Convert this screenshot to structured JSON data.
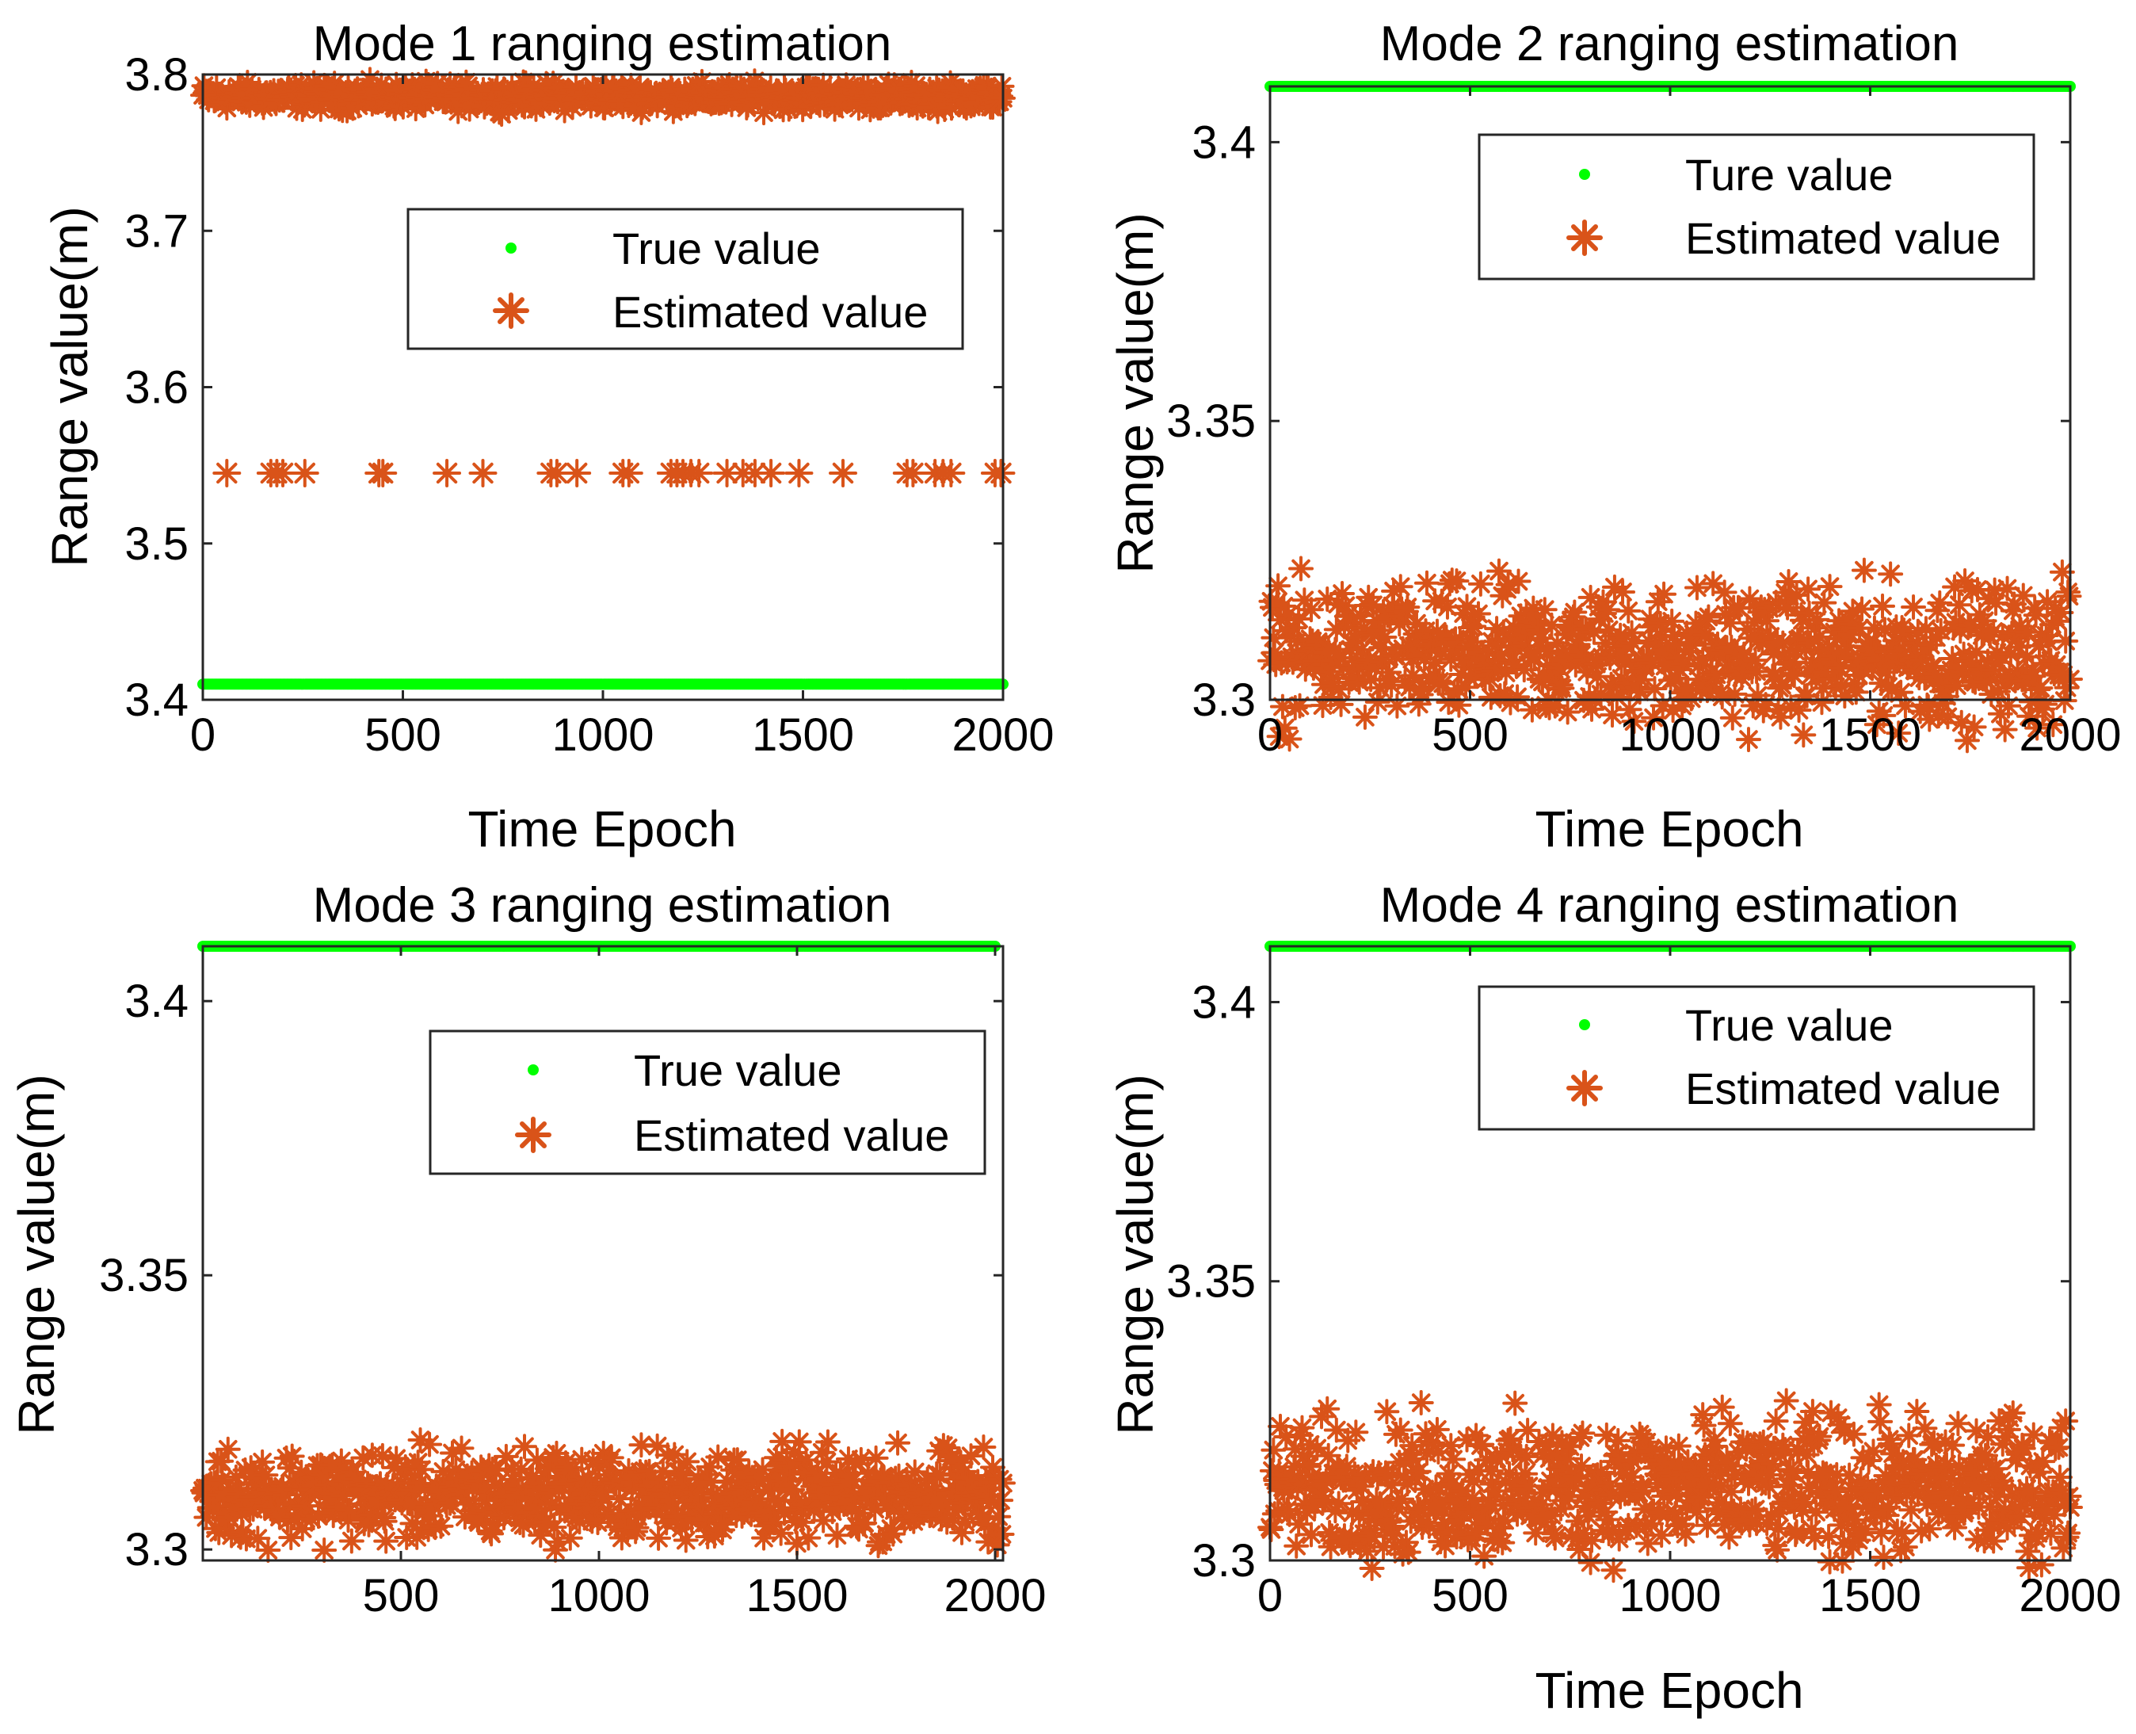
{
  "chart_data": [
    {
      "type": "scatter",
      "title": "Mode 1 ranging estimation",
      "xlabel": "Time Epoch",
      "ylabel": "Range value(m)",
      "xlim": [
        0,
        2000
      ],
      "ylim": [
        3.4,
        3.8
      ],
      "xticks": [
        0,
        500,
        1000,
        1500,
        2000
      ],
      "yticks": [
        3.4,
        3.5,
        3.6,
        3.7,
        3.8
      ],
      "ytick_labels": [
        "3.4",
        "3.5",
        "3.6",
        "3.7",
        "3.8"
      ],
      "legend_position": "upper-middle-right",
      "series": [
        {
          "name": "True value",
          "marker": "dot",
          "color": "#00ff00",
          "x_range": [
            0,
            2000
          ],
          "value": 3.41
        },
        {
          "name": "Estimated value",
          "marker": "asterisk",
          "color": "#d95319",
          "x_range": [
            0,
            2000
          ],
          "main_level": 3.786,
          "noise": 0.004,
          "outlier_level": 3.545,
          "outlier_x": [
            60,
            170,
            185,
            200,
            255,
            440,
            450,
            610,
            700,
            870,
            885,
            935,
            1050,
            1065,
            1170,
            1185,
            1200,
            1220,
            1240,
            1310,
            1350,
            1380,
            1420,
            1490,
            1600,
            1760,
            1775,
            1830,
            1850,
            1870,
            1980,
            1995
          ]
        }
      ]
    },
    {
      "type": "scatter",
      "title": "Mode 2 ranging estimation",
      "xlabel": "Time Epoch",
      "ylabel": "Range value(m)",
      "xlim": [
        0,
        2000
      ],
      "ylim": [
        3.3,
        3.41
      ],
      "xticks": [
        0,
        500,
        1000,
        1500,
        2000
      ],
      "yticks": [
        3.3,
        3.35,
        3.4
      ],
      "ytick_labels": [
        "3.3",
        "3.35",
        "3.4"
      ],
      "legend_position": "top-right",
      "series": [
        {
          "name": "Ture value",
          "marker": "dot",
          "color": "#00ff00",
          "x_range": [
            0,
            2000
          ],
          "value": 3.41
        },
        {
          "name": "Estimated value",
          "marker": "asterisk",
          "color": "#d95319",
          "x_range": [
            0,
            2000
          ],
          "main_level": 3.308,
          "noise": 0.006
        }
      ]
    },
    {
      "type": "scatter",
      "title": "Mode 3 ranging estimation",
      "xlabel": "",
      "ylabel": "Range value(m)",
      "xlim": [
        0,
        2020
      ],
      "ylim": [
        3.298,
        3.41
      ],
      "xticks": [
        500,
        1000,
        1500,
        2000
      ],
      "yticks": [
        3.3,
        3.35,
        3.4
      ],
      "ytick_labels": [
        "3.3",
        "3.35",
        "3.4"
      ],
      "legend_position": "upper-right",
      "series": [
        {
          "name": "True value",
          "marker": "dot",
          "color": "#00ff00",
          "x_range": [
            0,
            2000
          ],
          "value": 3.41
        },
        {
          "name": "Estimated value",
          "marker": "asterisk",
          "color": "#d95319",
          "x_range": [
            0,
            2020
          ],
          "main_level": 3.31,
          "noise": 0.004
        }
      ]
    },
    {
      "type": "scatter",
      "title": "Mode 4 ranging estimation",
      "xlabel": "Time Epoch",
      "ylabel": "Range value(m)",
      "xlim": [
        0,
        2000
      ],
      "ylim": [
        3.3,
        3.41
      ],
      "xticks": [
        0,
        500,
        1000,
        1500,
        2000
      ],
      "yticks": [
        3.3,
        3.35,
        3.4
      ],
      "ytick_labels": [
        "3.3",
        "3.35",
        "3.4"
      ],
      "legend_position": "top-right",
      "series": [
        {
          "name": "True value",
          "marker": "dot",
          "color": "#00ff00",
          "x_range": [
            0,
            2000
          ],
          "value": 3.41
        },
        {
          "name": "Estimated value",
          "marker": "asterisk",
          "color": "#d95319",
          "x_range": [
            0,
            2000
          ],
          "main_level": 3.313,
          "noise": 0.006
        }
      ]
    }
  ]
}
